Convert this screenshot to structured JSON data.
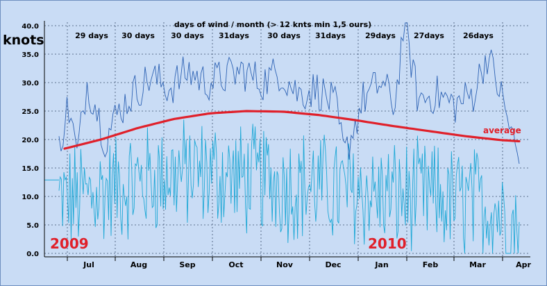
{
  "chart_data": {
    "type": "line",
    "title": "days of wind / month (> 12 knts min 1,5 ours)",
    "ylabel": "knots",
    "ylim": [
      0,
      40
    ],
    "yticks": [
      "0.0",
      "5.0",
      "10.0",
      "15.0",
      "20.0",
      "25.0",
      "30.0",
      "35.0",
      "40.0"
    ],
    "months": [
      "Jul",
      "Aug",
      "Sep",
      "Oct",
      "Nov",
      "Dec",
      "Jan",
      "Feb",
      "Mar",
      "Apr"
    ],
    "days_of_wind": [
      "29 days",
      "30 days",
      "30 days",
      "31days",
      "30 days",
      "31days",
      "29days",
      "27days",
      "26days"
    ],
    "year_labels": [
      "2009",
      "2010"
    ],
    "grid": true,
    "colors": {
      "gust": "#2d62b4",
      "wind": "#1ea8d6",
      "average": "#e0202a",
      "background": "#c9dcf5",
      "years": "#e0202a"
    },
    "series": [
      {
        "name": "",
        "style": "max (dark blue)",
        "anchors": [
          [
            0,
            19
          ],
          [
            0.02,
            26
          ],
          [
            0.04,
            17
          ],
          [
            0.06,
            30
          ],
          [
            0.08,
            26
          ],
          [
            0.1,
            20
          ],
          [
            0.13,
            25
          ],
          [
            0.16,
            28
          ],
          [
            0.2,
            31
          ],
          [
            0.24,
            29
          ],
          [
            0.28,
            32
          ],
          [
            0.32,
            30
          ],
          [
            0.36,
            31
          ],
          [
            0.4,
            32
          ],
          [
            0.44,
            30
          ],
          [
            0.48,
            32
          ],
          [
            0.52,
            28
          ],
          [
            0.56,
            29
          ],
          [
            0.6,
            26
          ],
          [
            0.62,
            17
          ],
          [
            0.66,
            27
          ],
          [
            0.7,
            30
          ],
          [
            0.73,
            26
          ],
          [
            0.75,
            41
          ],
          [
            0.78,
            27
          ],
          [
            0.82,
            28
          ],
          [
            0.86,
            26
          ],
          [
            0.9,
            28
          ],
          [
            0.93,
            35
          ],
          [
            0.96,
            28
          ],
          [
            1,
            16
          ]
        ]
      },
      {
        "name": "",
        "style": "wind (light blue)",
        "anchors": [
          [
            0,
            9
          ],
          [
            0.05,
            10
          ],
          [
            0.1,
            11
          ],
          [
            0.15,
            12
          ],
          [
            0.2,
            13
          ],
          [
            0.25,
            14
          ],
          [
            0.3,
            14
          ],
          [
            0.35,
            14
          ],
          [
            0.4,
            13
          ],
          [
            0.45,
            13
          ],
          [
            0.5,
            12
          ],
          [
            0.55,
            12
          ],
          [
            0.6,
            11
          ],
          [
            0.65,
            11
          ],
          [
            0.7,
            10
          ],
          [
            0.75,
            10
          ],
          [
            0.8,
            10
          ],
          [
            0.85,
            9
          ],
          [
            0.9,
            9
          ],
          [
            0.95,
            8
          ],
          [
            1,
            4
          ]
        ]
      },
      {
        "name": "average",
        "style": "average (red)",
        "anchors": [
          [
            0,
            18.4
          ],
          [
            0.08,
            20.0
          ],
          [
            0.16,
            22.0
          ],
          [
            0.24,
            23.6
          ],
          [
            0.32,
            24.6
          ],
          [
            0.4,
            25.0
          ],
          [
            0.48,
            24.9
          ],
          [
            0.56,
            24.3
          ],
          [
            0.64,
            23.4
          ],
          [
            0.72,
            22.4
          ],
          [
            0.8,
            21.5
          ],
          [
            0.88,
            20.6
          ],
          [
            0.96,
            19.9
          ],
          [
            1,
            19.7
          ]
        ]
      }
    ]
  }
}
